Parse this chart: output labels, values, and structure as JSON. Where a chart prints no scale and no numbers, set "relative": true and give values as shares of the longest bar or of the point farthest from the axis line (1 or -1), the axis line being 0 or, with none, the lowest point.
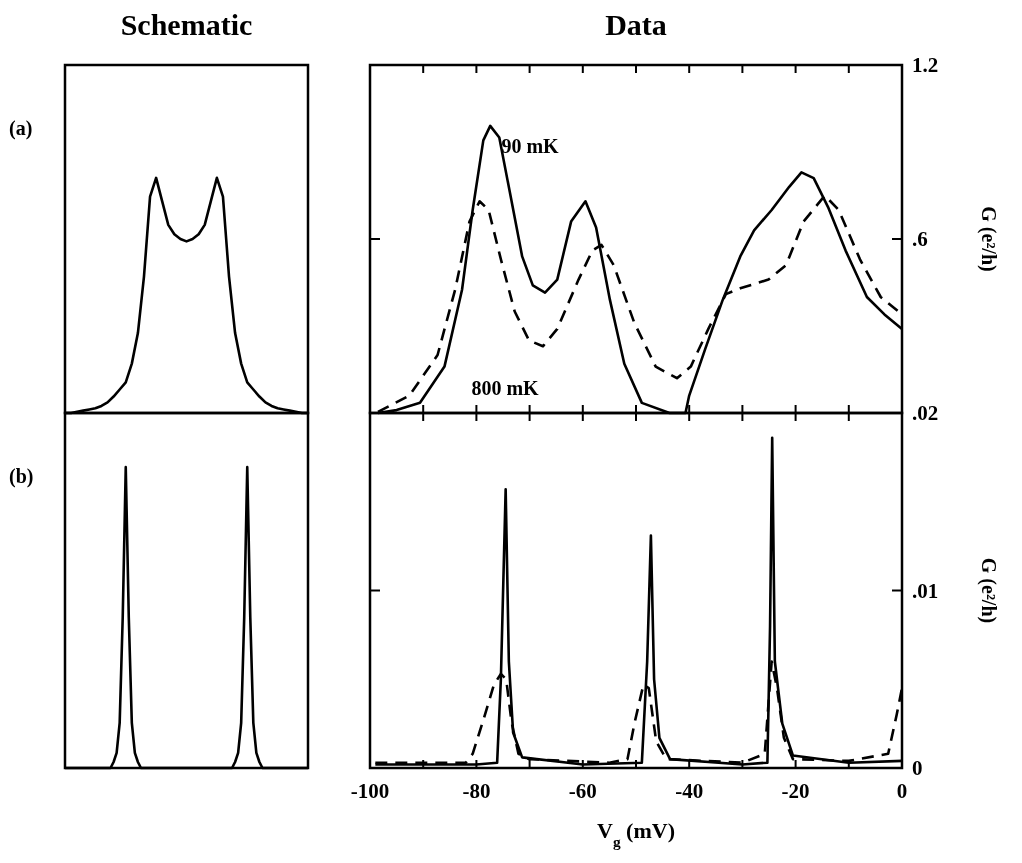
{
  "chart_data": [
    {
      "type": "line",
      "title": "Schematic",
      "relative": true,
      "annotations": [
        "(a)"
      ],
      "categories": [
        null,
        null,
        null,
        null,
        null,
        null,
        null,
        null,
        null,
        null,
        null,
        null,
        null,
        null,
        null,
        null,
        null,
        null,
        null,
        null,
        null,
        null,
        null,
        null,
        null,
        null,
        null,
        null,
        null,
        null,
        null,
        null,
        null,
        null,
        null,
        null,
        null,
        null,
        null,
        null,
        null
      ],
      "series": [
        {
          "color": "#000000",
          "line_style": "solid",
          "values": [
            0,
            0,
            0.005,
            0.01,
            0.015,
            0.02,
            0.03,
            0.045,
            0.07,
            0.1,
            0.13,
            0.21,
            0.34,
            0.58,
            0.92,
            1,
            0.9,
            0.8,
            0.76,
            0.74,
            0.73,
            0.74,
            0.76,
            0.8,
            0.9,
            1,
            0.92,
            0.58,
            0.34,
            0.21,
            0.13,
            0.1,
            0.07,
            0.045,
            0.03,
            0.02,
            0.015,
            0.01,
            0.005,
            0,
            0
          ]
        }
      ]
    },
    {
      "type": "line",
      "title": "Data",
      "ylabel": "G (e²/h)",
      "tick_labels": "y",
      "xlim": [
        -100,
        0
      ],
      "xticks": [
        {
          "value": -100,
          "label": null
        },
        {
          "value": -90,
          "label": null
        },
        {
          "value": -80,
          "label": null
        },
        {
          "value": -70,
          "label": null
        },
        {
          "value": -60,
          "label": null
        },
        {
          "value": -50,
          "label": null
        },
        {
          "value": -40,
          "label": null
        },
        {
          "value": -30,
          "label": null
        },
        {
          "value": -20,
          "label": null
        },
        {
          "value": -10,
          "label": null
        },
        {
          "value": 0,
          "label": null
        }
      ],
      "ylim": [
        0,
        1.2
      ],
      "yticks": [
        {
          "value": 0,
          "label": null
        },
        {
          "value": 0.6,
          "label": ".6"
        },
        1.2
      ],
      "annotations": [
        "90 mK",
        "800 mK"
      ],
      "series": [
        {
          "color": "#000000",
          "line_style": "solid",
          "x": [
            -98.5,
            -95,
            -90.6,
            -86,
            -82.7,
            -80.7,
            -78.7,
            -77.4,
            -75.7,
            -73.7,
            -71.4,
            -69.4,
            -67.1,
            -64.8,
            -62.2,
            -59.5,
            -57.5,
            -54.9,
            -52.2,
            -48.9,
            -43.7,
            -40.7,
            -40,
            -37,
            -33.7,
            -30.4,
            -27.8,
            -24.5,
            -21.2,
            -18.9,
            -16.6,
            -13.9,
            -10.6,
            -6.6,
            -3.3,
            0
          ],
          "values": [
            0,
            0.01,
            0.035,
            0.16,
            0.425,
            0.7,
            0.94,
            0.99,
            0.95,
            0.76,
            0.54,
            0.44,
            0.415,
            0.46,
            0.66,
            0.73,
            0.64,
            0.39,
            0.17,
            0.035,
            0,
            0,
            0.06,
            0.22,
            0.39,
            0.54,
            0.63,
            0.7,
            0.78,
            0.83,
            0.81,
            0.71,
            0.56,
            0.4,
            0.34,
            0.29
          ]
        },
        {
          "color": "#000000",
          "line_style": "dashed",
          "x": [
            -98.5,
            -92.6,
            -87.3,
            -84,
            -81.3,
            -79.4,
            -77.7,
            -75.4,
            -72.8,
            -70.1,
            -67.5,
            -64.8,
            -60.8,
            -58.2,
            -56.5,
            -54.2,
            -50.3,
            -46.3,
            -42.3,
            -39.7,
            -36.4,
            -33.1,
            -30.4,
            -25.1,
            -21.8,
            -18.5,
            -14.5,
            -11.9,
            -7.9,
            -4,
            0
          ],
          "values": [
            0.004,
            0.06,
            0.2,
            0.425,
            0.66,
            0.73,
            0.7,
            0.53,
            0.35,
            0.25,
            0.23,
            0.29,
            0.46,
            0.56,
            0.58,
            0.51,
            0.31,
            0.16,
            0.12,
            0.16,
            0.29,
            0.41,
            0.43,
            0.46,
            0.51,
            0.66,
            0.75,
            0.7,
            0.53,
            0.4,
            0.34
          ]
        }
      ]
    },
    {
      "type": "line",
      "relative": true,
      "annotations": [
        "(b)"
      ],
      "categories": [
        null,
        null,
        null,
        null,
        null,
        null,
        null,
        null,
        null,
        null,
        null,
        null,
        null,
        null,
        null,
        null,
        null,
        null,
        null,
        null,
        null,
        null,
        null,
        null,
        null,
        null,
        null,
        null,
        null,
        null,
        null,
        null,
        null,
        null,
        null,
        null,
        null,
        null,
        null,
        null,
        null,
        null,
        null,
        null,
        null,
        null,
        null,
        null,
        null,
        null,
        null,
        null,
        null,
        null,
        null,
        null,
        null,
        null,
        null,
        null,
        null,
        null,
        null,
        null,
        null,
        null,
        null,
        null,
        null,
        null,
        null,
        null,
        null,
        null,
        null,
        null,
        null,
        null,
        null,
        null,
        null
      ],
      "series": [
        {
          "color": "#000000",
          "line_style": "solid",
          "values": [
            0,
            0,
            0,
            0,
            0,
            0,
            0,
            0,
            0,
            0,
            0,
            0,
            0,
            0,
            0,
            0,
            0.02,
            0.05,
            0.15,
            0.5,
            1,
            0.5,
            0.15,
            0.05,
            0.02,
            0,
            0,
            0,
            0,
            0,
            0,
            0,
            0,
            0,
            0,
            0,
            0,
            0,
            0,
            0,
            0,
            0,
            0,
            0,
            0,
            0,
            0,
            0,
            0,
            0,
            0,
            0,
            0,
            0,
            0,
            0,
            0.02,
            0.05,
            0.15,
            0.5,
            1,
            0.5,
            0.15,
            0.05,
            0.02,
            0,
            0,
            0,
            0,
            0,
            0,
            0,
            0,
            0,
            0,
            0,
            0,
            0,
            0,
            0,
            0
          ]
        }
      ]
    },
    {
      "type": "line",
      "xlabel": "V$_{g}$ (mV)",
      "ylabel": "G (e²/h)",
      "xlim": [
        -100,
        0
      ],
      "xticks": [
        -100,
        {
          "value": -90,
          "label": null
        },
        -80,
        {
          "value": -70,
          "label": null
        },
        -60,
        {
          "value": -50,
          "label": null
        },
        -40,
        {
          "value": -30,
          "label": null
        },
        -20,
        {
          "value": -10,
          "label": null
        },
        0
      ],
      "ylim": [
        0,
        0.02
      ],
      "yticks": [
        0,
        {
          "value": 0.01,
          "label": ".01"
        },
        {
          "value": 0.02,
          "label": ".02"
        }
      ],
      "series": [
        {
          "color": "#000000",
          "line_style": "solid",
          "x": [
            -99,
            -80,
            -76.1,
            -75.4,
            -74.5,
            -73.9,
            -73.1,
            -71.4,
            -60,
            -48.9,
            -47.9,
            -47.2,
            -46.6,
            -45.6,
            -43.6,
            -30,
            -25.3,
            -24.8,
            -24.4,
            -23.9,
            -22.5,
            -20.5,
            -10,
            0
          ],
          "values": [
            0.0002,
            0.0002,
            0.0003,
            0.005,
            0.0157,
            0.006,
            0.002,
            0.0006,
            0.0002,
            0.0003,
            0.006,
            0.0131,
            0.005,
            0.0017,
            0.0005,
            0.0002,
            0.0003,
            0.008,
            0.0186,
            0.006,
            0.0025,
            0.0007,
            0.0003,
            0.0004
          ]
        },
        {
          "color": "#000000",
          "line_style": "dashed",
          "x": [
            -99,
            -82,
            -80.7,
            -78.7,
            -76.7,
            -75.4,
            -74.4,
            -73.4,
            -72.1,
            -70.1,
            -55,
            -51.6,
            -50.3,
            -48.6,
            -47.6,
            -46.2,
            -44.3,
            -30,
            -25.8,
            -24.5,
            -23.5,
            -22.2,
            -20.5,
            -10,
            -2.6,
            -1,
            0
          ],
          "values": [
            0.0003,
            0.0003,
            0.0008,
            0.0027,
            0.0047,
            0.0053,
            0.005,
            0.0026,
            0.0008,
            0.0005,
            0.0003,
            0.0005,
            0.0025,
            0.0047,
            0.0045,
            0.0015,
            0.0005,
            0.0003,
            0.0008,
            0.006,
            0.0045,
            0.0017,
            0.0005,
            0.0004,
            0.0008,
            0.003,
            0.0045
          ]
        }
      ]
    }
  ]
}
